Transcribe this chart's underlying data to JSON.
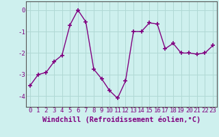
{
  "x": [
    0,
    1,
    2,
    3,
    4,
    5,
    6,
    7,
    8,
    9,
    10,
    11,
    12,
    13,
    14,
    15,
    16,
    17,
    18,
    19,
    20,
    21,
    22,
    23
  ],
  "y": [
    -3.5,
    -3.0,
    -2.9,
    -2.4,
    -2.1,
    -0.7,
    0.0,
    -0.55,
    -2.75,
    -3.2,
    -3.75,
    -4.1,
    -3.3,
    -1.0,
    -1.0,
    -0.6,
    -0.65,
    -1.8,
    -1.55,
    -2.0,
    -2.0,
    -2.05,
    -2.0,
    -1.65
  ],
  "line_color": "#800080",
  "marker": "+",
  "marker_size": 4,
  "marker_linewidth": 1.2,
  "bg_color": "#cef0ee",
  "grid_color": "#b0d8d4",
  "xlabel": "Windchill (Refroidissement éolien,°C)",
  "xlabel_fontsize": 7.5,
  "ylim": [
    -4.5,
    0.4
  ],
  "yticks": [
    -4,
    -3,
    -2,
    -1,
    0
  ],
  "xticks": [
    0,
    1,
    2,
    3,
    4,
    5,
    6,
    7,
    8,
    9,
    10,
    11,
    12,
    13,
    14,
    15,
    16,
    17,
    18,
    19,
    20,
    21,
    22,
    23
  ],
  "tick_fontsize": 6.5,
  "line_width": 1.0
}
